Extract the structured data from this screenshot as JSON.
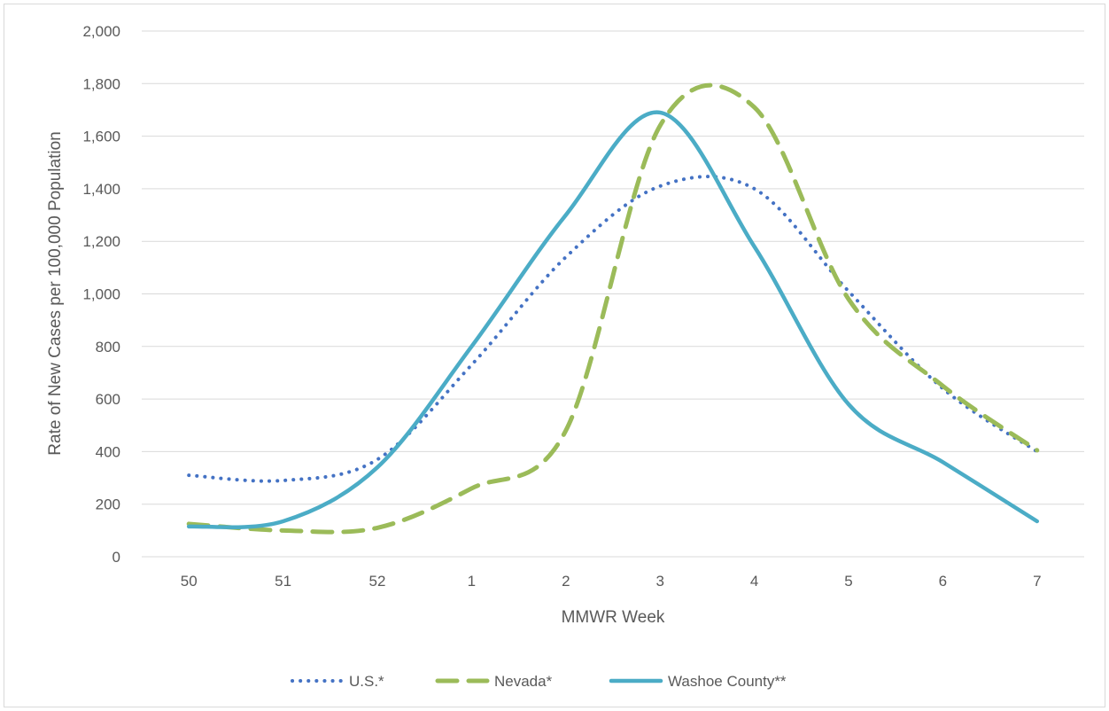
{
  "chart_data": {
    "type": "line",
    "title": "",
    "xlabel": "MMWR Week",
    "ylabel": "Rate of New Cases per 100,000 Population",
    "categories": [
      "50",
      "51",
      "52",
      "1",
      "2",
      "3",
      "4",
      "5",
      "6",
      "7"
    ],
    "ylim": [
      0,
      2000
    ],
    "yticks": [
      0,
      200,
      400,
      600,
      800,
      1000,
      1200,
      1400,
      1600,
      1800,
      2000
    ],
    "ytick_labels": [
      "0",
      "200",
      "400",
      "600",
      "800",
      "1,000",
      "1,200",
      "1,400",
      "1,600",
      "1,800",
      "2,000"
    ],
    "grid": true,
    "legend_position": "bottom",
    "series": [
      {
        "name": "U.S.*",
        "style": "dotted",
        "color": "#4472c4",
        "values": [
          310,
          290,
          370,
          730,
          1140,
          1410,
          1400,
          1010,
          640,
          400
        ]
      },
      {
        "name": "Nevada*",
        "style": "dashed",
        "color": "#9bbb59",
        "values": [
          125,
          100,
          110,
          260,
          480,
          1640,
          1710,
          980,
          650,
          405
        ]
      },
      {
        "name": "Washoe County**",
        "style": "solid",
        "color": "#4bacc6",
        "values": [
          115,
          135,
          340,
          800,
          1300,
          1690,
          1180,
          580,
          360,
          135
        ]
      }
    ]
  }
}
